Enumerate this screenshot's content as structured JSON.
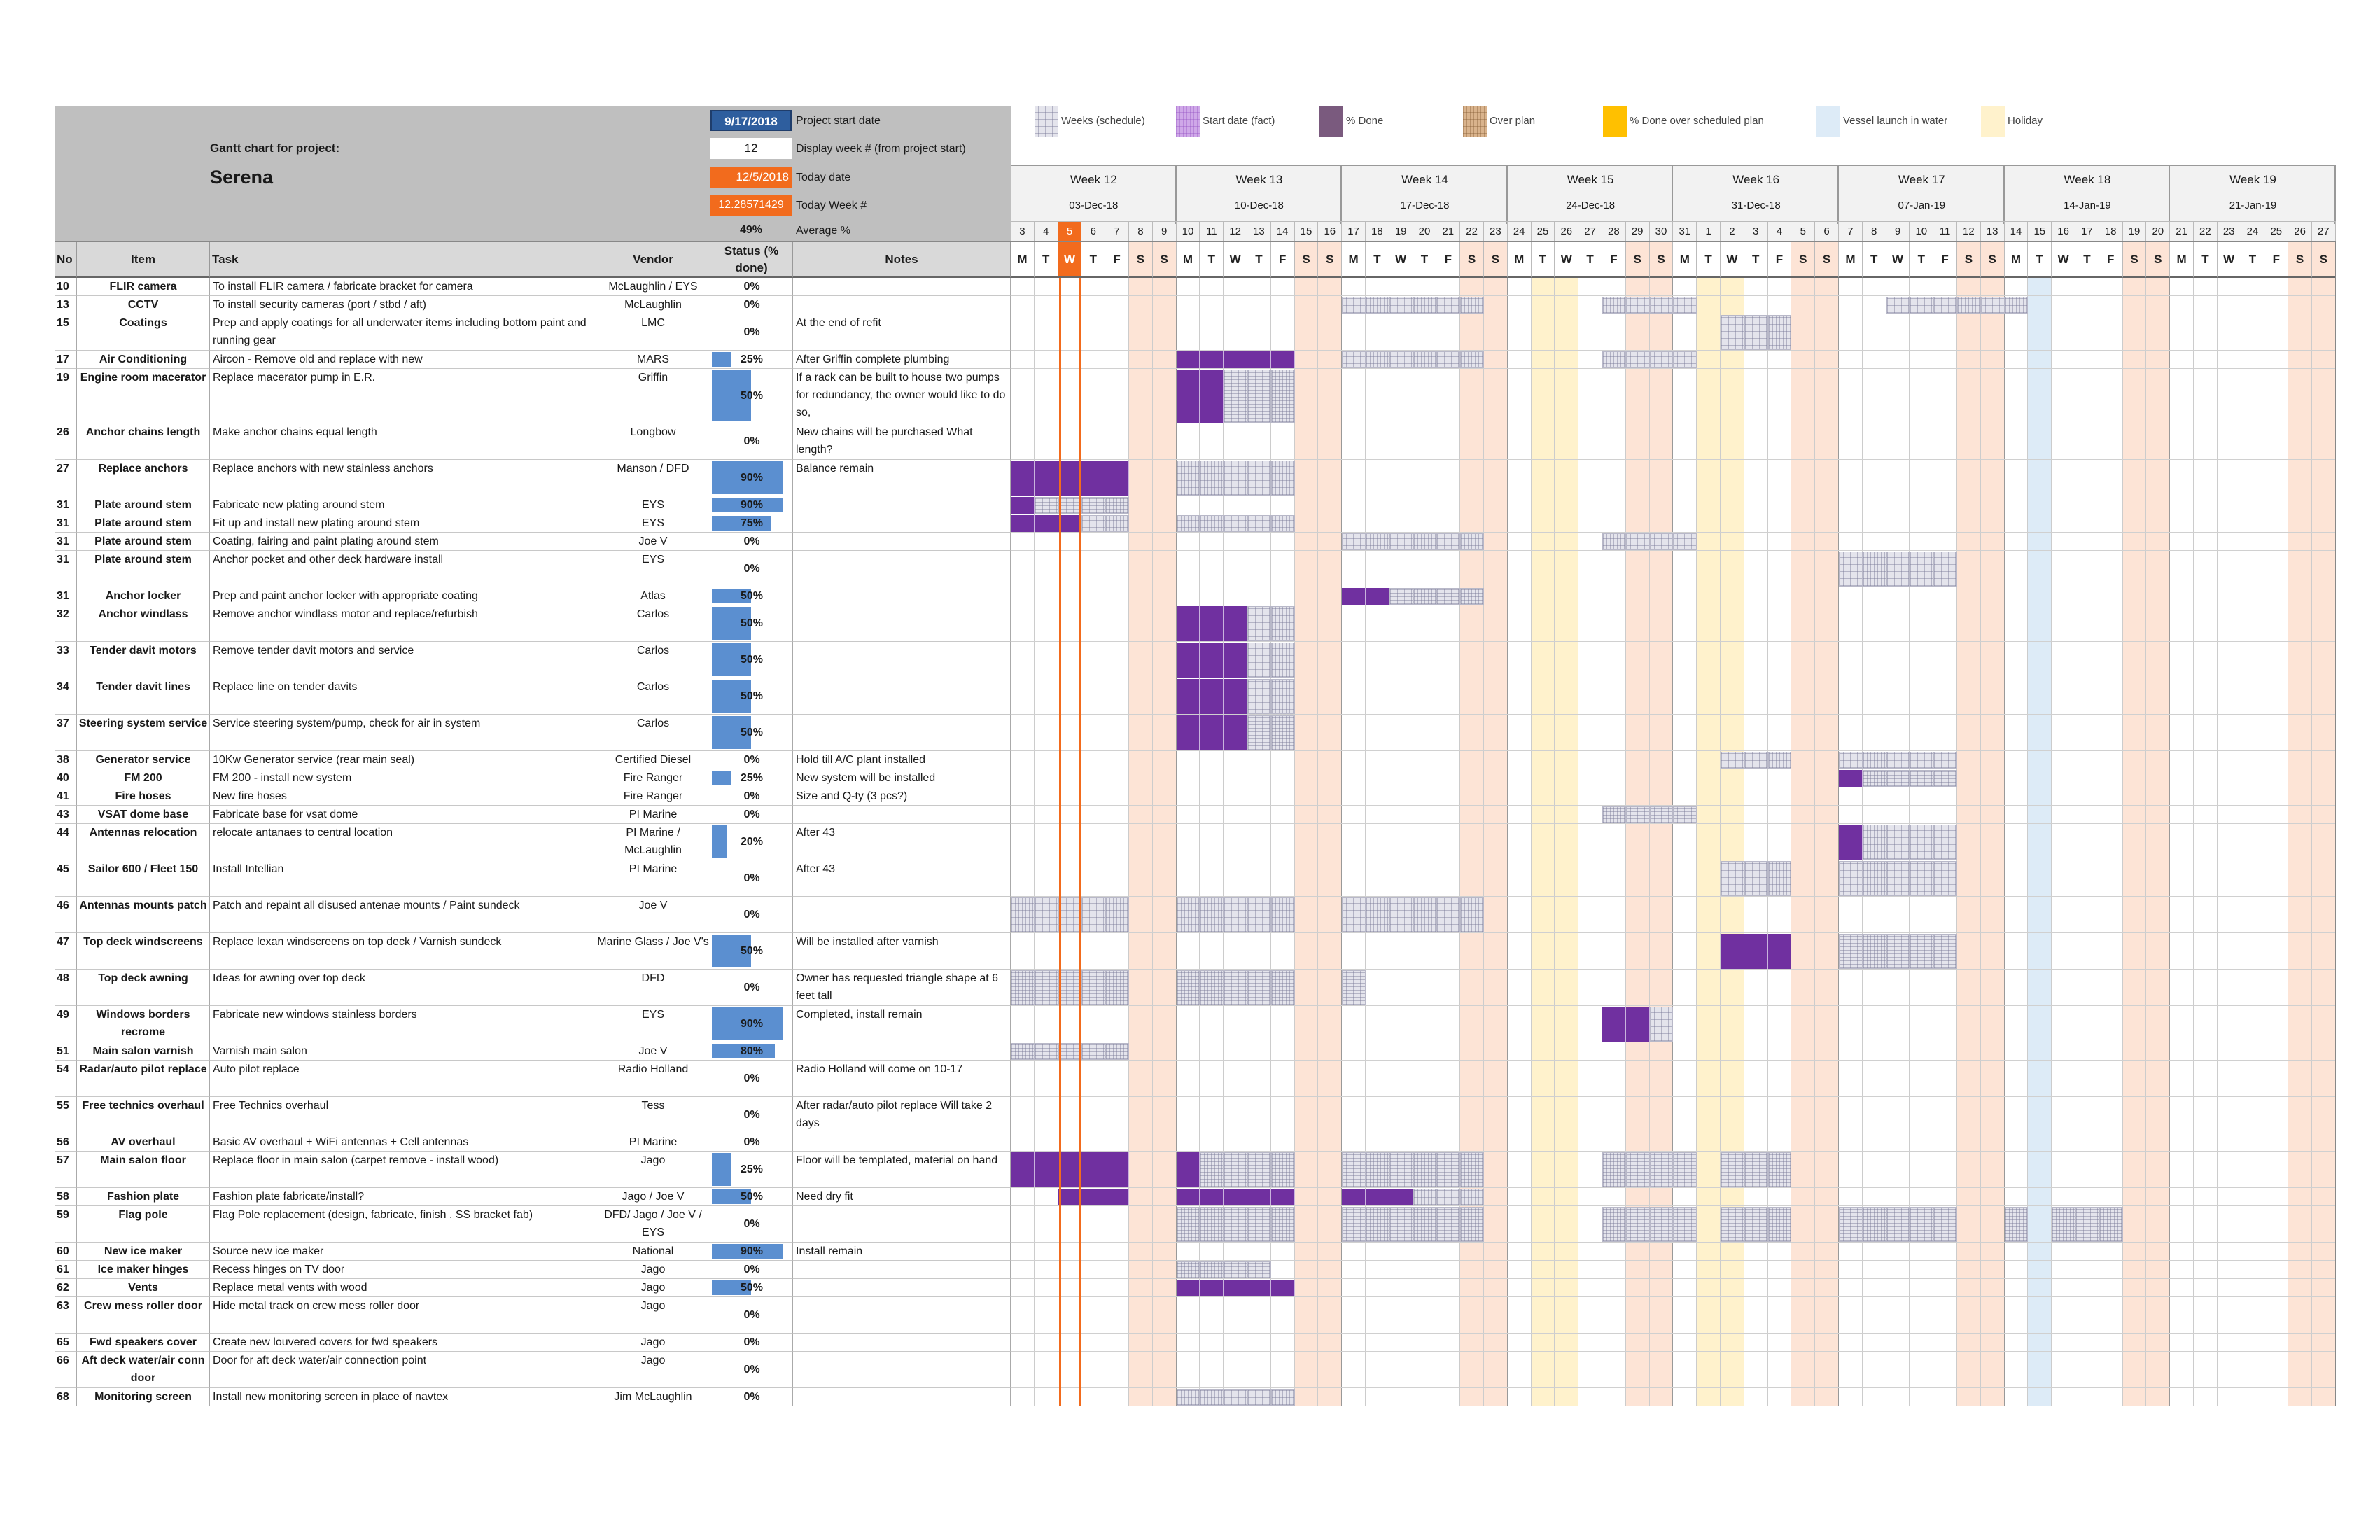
{
  "header": {
    "gantt_label": "Gantt chart for project:",
    "project_name": "Serena",
    "start_date": "9/17/2018",
    "start_date_label": "Project start date",
    "display_week": "12",
    "display_week_label": "Display week # (from project start)",
    "today_date": "12/5/2018",
    "today_date_label": "Today date",
    "today_week": "12.28571429",
    "today_week_label": "Today Week #",
    "average": "49%",
    "average_label": "Average %"
  },
  "legend": [
    {
      "label": "Weeks (schedule)",
      "icon": "schedule-swatch"
    },
    {
      "label": "Start date (fact)",
      "icon": "start-fact-swatch"
    },
    {
      "label": "% Done",
      "icon": "done-swatch"
    },
    {
      "label": "Over plan",
      "icon": "over-plan-swatch"
    },
    {
      "label": "% Done over scheduled plan",
      "icon": "done-over-swatch"
    },
    {
      "label": "Vessel launch in water",
      "icon": "launch-swatch"
    },
    {
      "label": "Holiday",
      "icon": "holiday-swatch"
    }
  ],
  "columns": {
    "no": "No",
    "item": "Item",
    "task": "Task",
    "vendor": "Vendor",
    "status": "Status (% done)",
    "notes": "Notes"
  },
  "weeks": [
    {
      "label": "Week 12",
      "date": "03-Dec-18",
      "days": [
        "3",
        "4",
        "5",
        "6",
        "7",
        "8",
        "9"
      ]
    },
    {
      "label": "Week 13",
      "date": "10-Dec-18",
      "days": [
        "10",
        "11",
        "12",
        "13",
        "14",
        "15",
        "16"
      ]
    },
    {
      "label": "Week 14",
      "date": "17-Dec-18",
      "days": [
        "17",
        "18",
        "19",
        "20",
        "21",
        "22",
        "23"
      ]
    },
    {
      "label": "Week 15",
      "date": "24-Dec-18",
      "days": [
        "24",
        "25",
        "26",
        "27",
        "28",
        "29",
        "30"
      ]
    },
    {
      "label": "Week 16",
      "date": "31-Dec-18",
      "days": [
        "31",
        "1",
        "2",
        "3",
        "4",
        "5",
        "6"
      ]
    },
    {
      "label": "Week 17",
      "date": "07-Jan-19",
      "days": [
        "7",
        "8",
        "9",
        "10",
        "11",
        "12",
        "13"
      ]
    },
    {
      "label": "Week 18",
      "date": "14-Jan-19",
      "days": [
        "14",
        "15",
        "16",
        "17",
        "18",
        "19",
        "20"
      ]
    },
    {
      "label": "Week 19",
      "date": "21-Jan-19",
      "days": [
        "21",
        "22",
        "23",
        "24",
        "25",
        "26",
        "27"
      ]
    }
  ],
  "weekday_letters": [
    "M",
    "T",
    "W",
    "T",
    "F",
    "S",
    "S"
  ],
  "colors": {
    "header_grey": "#bfbfbf",
    "today": "#f26b1d",
    "blue_box": "#2e5e9e",
    "status_bar": "#5b8fd0",
    "done": "#7030a0",
    "planned": "#e4e4ec",
    "weekend": "#fde4d6",
    "holiday": "#fff2cc",
    "launch": "#ddebf7",
    "over_plan": "#d9b38c",
    "done_over": "#ffc000",
    "start_fact": "#cfa8e8"
  },
  "rows": [
    {
      "no": "10",
      "item": "FLIR camera",
      "task": "To install FLIR camera / fabricate bracket for camera",
      "vendor": "McLaughlin / EYS",
      "status": "0%",
      "pct": 0,
      "notes": "",
      "h": 1,
      "plan": [],
      "done": []
    },
    {
      "no": "13",
      "item": "CCTV",
      "task": "To install security cameras (port / stbd / aft)",
      "vendor": "McLaughlin",
      "status": "0%",
      "pct": 0,
      "notes": "",
      "h": 1,
      "plan": [
        [
          14,
          19
        ],
        [
          25,
          28
        ],
        [
          37,
          42
        ]
      ],
      "done": []
    },
    {
      "no": "15",
      "item": "Coatings",
      "task": "Prep and apply coatings for all underwater items including bottom paint and running gear",
      "vendor": "LMC",
      "status": "0%",
      "pct": 0,
      "notes": "At the end of refit",
      "h": 2,
      "plan": [
        [
          30,
          32
        ]
      ],
      "done": []
    },
    {
      "no": "17",
      "item": "Air Conditioning",
      "task": "Aircon - Remove old and replace with new",
      "vendor": "MARS",
      "status": "25%",
      "pct": 25,
      "notes": "After Griffin complete plumbing",
      "h": 1,
      "plan": [
        [
          14,
          19
        ],
        [
          25,
          28
        ]
      ],
      "done": [
        [
          7,
          11
        ]
      ]
    },
    {
      "no": "19",
      "item": "Engine room macerator",
      "task": "Replace macerator pump in E.R.",
      "vendor": "Griffin",
      "status": "50%",
      "pct": 50,
      "notes": "If a rack can be built to house two pumps for redundancy, the owner would like to do so,",
      "h": 3,
      "plan": [
        [
          9,
          11
        ]
      ],
      "done": [
        [
          7,
          8
        ]
      ]
    },
    {
      "no": "26",
      "item": "Anchor chains length",
      "task": "Make anchor chains equal length",
      "vendor": "Longbow",
      "status": "0%",
      "pct": 0,
      "notes": "New chains will be purchased What length?",
      "h": 2,
      "plan": [],
      "done": []
    },
    {
      "no": "27",
      "item": "Replace anchors",
      "task": "Replace anchors with new stainless anchors",
      "vendor": "Manson / DFD",
      "status": "90%",
      "pct": 90,
      "notes": "Balance remain",
      "h": 2,
      "plan": [
        [
          7,
          11
        ]
      ],
      "done": [
        [
          0,
          4
        ]
      ]
    },
    {
      "no": "31",
      "item": "Plate around stem",
      "task": "Fabricate new plating around stem",
      "vendor": "EYS",
      "status": "90%",
      "pct": 90,
      "notes": "",
      "h": 1,
      "plan": [
        [
          1,
          4
        ]
      ],
      "done": [
        [
          0,
          0
        ]
      ]
    },
    {
      "no": "31",
      "item": "Plate around stem",
      "task": "Fit up and install new plating around stem",
      "vendor": "EYS",
      "status": "75%",
      "pct": 75,
      "notes": "",
      "h": 1,
      "plan": [
        [
          3,
          4
        ],
        [
          7,
          11
        ]
      ],
      "done": [
        [
          0,
          2
        ]
      ]
    },
    {
      "no": "31",
      "item": "Plate around stem",
      "task": "Coating, fairing and paint plating around stem",
      "vendor": "Joe V",
      "status": "0%",
      "pct": 0,
      "notes": "",
      "h": 1,
      "plan": [
        [
          14,
          19
        ],
        [
          25,
          28
        ]
      ],
      "done": []
    },
    {
      "no": "31",
      "item": "Plate around stem",
      "task": "Anchor pocket and other deck hardware install",
      "vendor": "EYS",
      "status": "0%",
      "pct": 0,
      "notes": "",
      "h": 2,
      "plan": [
        [
          35,
          39
        ]
      ],
      "done": []
    },
    {
      "no": "31",
      "item": "Anchor locker",
      "task": "Prep and paint anchor locker with appropriate coating",
      "vendor": "Atlas",
      "status": "50%",
      "pct": 50,
      "notes": "",
      "h": 1,
      "plan": [
        [
          16,
          19
        ]
      ],
      "done": [
        [
          14,
          15
        ]
      ]
    },
    {
      "no": "32",
      "item": "Anchor windlass",
      "task": "Remove anchor windlass motor and replace/refurbish",
      "vendor": "Carlos",
      "status": "50%",
      "pct": 50,
      "notes": "",
      "h": 2,
      "plan": [
        [
          10,
          11
        ]
      ],
      "done": [
        [
          7,
          9
        ]
      ]
    },
    {
      "no": "33",
      "item": "Tender davit motors",
      "task": "Remove tender davit motors and service",
      "vendor": "Carlos",
      "status": "50%",
      "pct": 50,
      "notes": "",
      "h": 2,
      "plan": [
        [
          10,
          11
        ]
      ],
      "done": [
        [
          7,
          9
        ]
      ]
    },
    {
      "no": "34",
      "item": "Tender davit lines",
      "task": "Replace line on tender davits",
      "vendor": "Carlos",
      "status": "50%",
      "pct": 50,
      "notes": "",
      "h": 2,
      "plan": [
        [
          10,
          11
        ]
      ],
      "done": [
        [
          7,
          9
        ]
      ]
    },
    {
      "no": "37",
      "item": "Steering system service",
      "task": "Service steering system/pump, check for air in system",
      "vendor": "Carlos",
      "status": "50%",
      "pct": 50,
      "notes": "",
      "h": 2,
      "plan": [
        [
          10,
          11
        ]
      ],
      "done": [
        [
          7,
          9
        ]
      ]
    },
    {
      "no": "38",
      "item": "Generator service",
      "task": "10Kw Generator service (rear main seal)",
      "vendor": "Certified Diesel",
      "status": "0%",
      "pct": 0,
      "notes": "Hold till A/C plant installed",
      "h": 1,
      "plan": [
        [
          30,
          32
        ],
        [
          35,
          39
        ]
      ],
      "done": []
    },
    {
      "no": "40",
      "item": "FM 200",
      "task": "FM 200 - install new system",
      "vendor": "Fire Ranger",
      "status": "25%",
      "pct": 25,
      "notes": "New system will be installed",
      "h": 1,
      "plan": [
        [
          36,
          39
        ]
      ],
      "done": [
        [
          35,
          35
        ]
      ]
    },
    {
      "no": "41",
      "item": "Fire hoses",
      "task": "New fire hoses",
      "vendor": "Fire Ranger",
      "status": "0%",
      "pct": 0,
      "notes": "Size and Q-ty (3 pcs?)",
      "h": 1,
      "plan": [],
      "done": []
    },
    {
      "no": "43",
      "item": "VSAT dome base",
      "task": "Fabricate base for vsat dome",
      "vendor": "PI Marine",
      "status": "0%",
      "pct": 0,
      "notes": "",
      "h": 1,
      "plan": [
        [
          25,
          28
        ]
      ],
      "done": []
    },
    {
      "no": "44",
      "item": "Antennas relocation",
      "task": "relocate antanaes to central location",
      "vendor": "PI Marine / McLaughlin",
      "status": "20%",
      "pct": 20,
      "notes": "After 43",
      "h": 2,
      "plan": [
        [
          36,
          39
        ]
      ],
      "done": [
        [
          35,
          35
        ]
      ]
    },
    {
      "no": "45",
      "item": "Sailor 600 / Fleet 150",
      "task": "Install Intellian",
      "vendor": "PI Marine",
      "status": "0%",
      "pct": 0,
      "notes": "After 43",
      "h": 2,
      "plan": [
        [
          30,
          32
        ],
        [
          35,
          39
        ]
      ],
      "done": []
    },
    {
      "no": "46",
      "item": "Antennas mounts patch",
      "task": "Patch and repaint all disused antenae mounts / Paint sundeck",
      "vendor": "Joe V",
      "status": "0%",
      "pct": 0,
      "notes": "",
      "h": 2,
      "plan": [
        [
          0,
          4
        ],
        [
          7,
          11
        ],
        [
          14,
          19
        ]
      ],
      "done": []
    },
    {
      "no": "47",
      "item": "Top deck windscreens",
      "task": "Replace lexan windscreens on top deck / Varnish sundeck",
      "vendor": "Marine Glass / Joe V's",
      "status": "50%",
      "pct": 50,
      "notes": "Will be installed after varnish",
      "h": 2,
      "plan": [
        [
          35,
          39
        ]
      ],
      "done": [
        [
          30,
          32
        ]
      ]
    },
    {
      "no": "48",
      "item": "Top deck awning",
      "task": "Ideas for awning over top deck",
      "vendor": "DFD",
      "status": "0%",
      "pct": 0,
      "notes": "Owner has requested triangle shape at 6 feet tall",
      "h": 2,
      "plan": [
        [
          0,
          4
        ],
        [
          7,
          11
        ],
        [
          14,
          14
        ]
      ],
      "done": []
    },
    {
      "no": "49",
      "item": "Windows borders recrome",
      "task": "Fabricate new windows stainless borders",
      "vendor": "EYS",
      "status": "90%",
      "pct": 90,
      "notes": "Completed, install remain",
      "h": 2,
      "plan": [
        [
          27,
          27
        ]
      ],
      "done": [
        [
          25,
          26
        ]
      ]
    },
    {
      "no": "51",
      "item": "Main salon varnish",
      "task": "Varnish main salon",
      "vendor": "Joe V",
      "status": "80%",
      "pct": 80,
      "notes": "",
      "h": 1,
      "plan": [
        [
          0,
          4
        ]
      ],
      "done": []
    },
    {
      "no": "54",
      "item": "Radar/auto pilot replace",
      "task": "Auto pilot replace",
      "vendor": "Radio Holland",
      "status": "0%",
      "pct": 0,
      "notes": "Radio Holland will come on 10-17",
      "h": 2,
      "plan": [],
      "done": []
    },
    {
      "no": "55",
      "item": "Free technics overhaul",
      "task": "Free Technics overhaul",
      "vendor": "Tess",
      "status": "0%",
      "pct": 0,
      "notes": "After radar/auto pilot replace Will take 2 days",
      "h": 2,
      "plan": [],
      "done": []
    },
    {
      "no": "56",
      "item": "AV overhaul",
      "task": "Basic AV overhaul + WiFi antennas + Cell antennas",
      "vendor": "PI Marine",
      "status": "0%",
      "pct": 0,
      "notes": "",
      "h": 1,
      "plan": [],
      "done": []
    },
    {
      "no": "57",
      "item": "Main salon floor",
      "task": "Replace floor in main salon (carpet remove - install wood)",
      "vendor": "Jago",
      "status": "25%",
      "pct": 25,
      "notes": "Floor will be templated, material on hand",
      "h": 2,
      "plan": [
        [
          8,
          11
        ],
        [
          14,
          19
        ],
        [
          25,
          28
        ],
        [
          30,
          32
        ]
      ],
      "done": [
        [
          0,
          4
        ],
        [
          7,
          7
        ]
      ]
    },
    {
      "no": "58",
      "item": "Fashion plate",
      "task": "Fashion plate fabricate/install?",
      "vendor": "Jago / Joe V",
      "status": "50%",
      "pct": 50,
      "notes": "Need dry fit",
      "h": 1,
      "plan": [
        [
          17,
          19
        ]
      ],
      "done": [
        [
          2,
          4
        ],
        [
          7,
          11
        ],
        [
          14,
          16
        ]
      ]
    },
    {
      "no": "59",
      "item": "Flag pole",
      "task": "Flag Pole replacement (design, fabricate, finish , SS bracket fab)",
      "vendor": "DFD/ Jago / Joe V / EYS",
      "status": "0%",
      "pct": 0,
      "notes": "",
      "h": 2,
      "plan": [
        [
          7,
          11
        ],
        [
          14,
          19
        ],
        [
          25,
          28
        ],
        [
          30,
          32
        ],
        [
          35,
          39
        ],
        [
          42,
          42
        ],
        [
          44,
          46
        ]
      ],
      "done": []
    },
    {
      "no": "60",
      "item": "New ice maker",
      "task": "Source new ice maker",
      "vendor": "National",
      "status": "90%",
      "pct": 90,
      "notes": "Install remain",
      "h": 1,
      "plan": [],
      "done": []
    },
    {
      "no": "61",
      "item": "Ice maker hinges",
      "task": "Recess hinges on TV door",
      "vendor": "Jago",
      "status": "0%",
      "pct": 0,
      "notes": "",
      "h": 1,
      "plan": [
        [
          7,
          10
        ]
      ],
      "done": []
    },
    {
      "no": "62",
      "item": "Vents",
      "task": "Replace metal vents with wood",
      "vendor": "Jago",
      "status": "50%",
      "pct": 50,
      "notes": "",
      "h": 1,
      "plan": [],
      "done": [
        [
          7,
          11
        ]
      ]
    },
    {
      "no": "63",
      "item": "Crew mess roller door",
      "task": "Hide metal track on crew mess roller door",
      "vendor": "Jago",
      "status": "0%",
      "pct": 0,
      "notes": "",
      "h": 2,
      "plan": [],
      "done": []
    },
    {
      "no": "65",
      "item": "Fwd speakers cover",
      "task": "Create new louvered covers for fwd speakers",
      "vendor": "Jago",
      "status": "0%",
      "pct": 0,
      "notes": "",
      "h": 1,
      "plan": [],
      "done": []
    },
    {
      "no": "66",
      "item": "Aft deck water/air conn door",
      "task": "Door for aft deck water/air connection point",
      "vendor": "Jago",
      "status": "0%",
      "pct": 0,
      "notes": "",
      "h": 2,
      "plan": [],
      "done": []
    },
    {
      "no": "68",
      "item": "Monitoring screen",
      "task": "Install new monitoring screen in place of navtex",
      "vendor": "Jim McLaughlin",
      "status": "0%",
      "pct": 0,
      "notes": "",
      "h": 1,
      "plan": [
        [
          7,
          11
        ]
      ],
      "done": []
    }
  ]
}
